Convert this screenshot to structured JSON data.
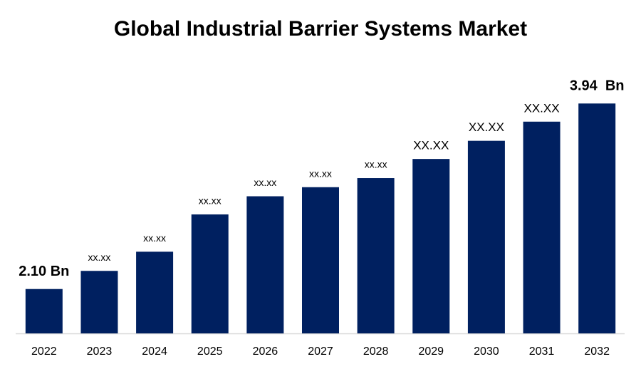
{
  "chart_data": {
    "type": "bar",
    "title": "Global Industrial Barrier Systems Market",
    "categories": [
      "2022",
      "2023",
      "2024",
      "2025",
      "2026",
      "2027",
      "2028",
      "2029",
      "2030",
      "2031",
      "2032"
    ],
    "values": [
      2.1,
      2.28,
      2.47,
      2.84,
      3.02,
      3.11,
      3.2,
      3.39,
      3.57,
      3.76,
      3.94
    ],
    "value_labels": [
      "2.10 Bn",
      "xx.xx",
      "xx.xx",
      "xx.xx",
      "xx.xx",
      "xx.xx",
      "xx.xx",
      "XX.XX",
      "XX.XX",
      "XX.XX",
      "3.94  Bn"
    ],
    "color": "#002060",
    "ylim": [
      1.66,
      4.26
    ]
  }
}
